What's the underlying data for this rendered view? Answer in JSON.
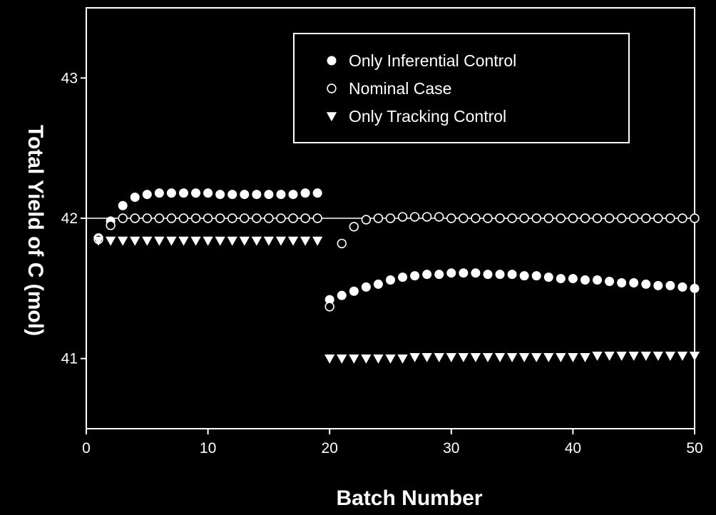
{
  "chart_data": {
    "type": "scatter",
    "title": "",
    "xlabel": "Batch Number",
    "ylabel": "Total Yield of C (mol)",
    "xlim": [
      0,
      50
    ],
    "ylim": [
      40.5,
      43.5
    ],
    "xticks": [
      0,
      10,
      20,
      30,
      40,
      50
    ],
    "yticks": [
      41,
      42,
      43
    ],
    "reference_line": 42,
    "legend_position": "top-right",
    "series": [
      {
        "name": "Only Inferential Control",
        "marker": "filled-circle",
        "x": [
          1,
          2,
          3,
          4,
          5,
          6,
          7,
          8,
          9,
          10,
          11,
          12,
          13,
          14,
          15,
          16,
          17,
          18,
          19,
          20,
          21,
          22,
          23,
          24,
          25,
          26,
          27,
          28,
          29,
          30,
          31,
          32,
          33,
          34,
          35,
          36,
          37,
          38,
          39,
          40,
          41,
          42,
          43,
          44,
          45,
          46,
          47,
          48,
          49,
          50
        ],
        "y": [
          41.86,
          41.98,
          42.09,
          42.15,
          42.17,
          42.18,
          42.18,
          42.18,
          42.18,
          42.18,
          42.17,
          42.17,
          42.17,
          42.17,
          42.17,
          42.17,
          42.17,
          42.18,
          42.18,
          41.42,
          41.45,
          41.48,
          41.51,
          41.53,
          41.56,
          41.58,
          41.59,
          41.6,
          41.6,
          41.61,
          41.61,
          41.61,
          41.6,
          41.6,
          41.6,
          41.59,
          41.59,
          41.58,
          41.57,
          41.57,
          41.56,
          41.56,
          41.55,
          41.54,
          41.54,
          41.53,
          41.52,
          41.52,
          41.51,
          41.5
        ]
      },
      {
        "name": "Nominal Case",
        "marker": "open-circle",
        "x": [
          1,
          2,
          3,
          4,
          5,
          6,
          7,
          8,
          9,
          10,
          11,
          12,
          13,
          14,
          15,
          16,
          17,
          18,
          19,
          20,
          21,
          22,
          23,
          24,
          25,
          26,
          27,
          28,
          29,
          30,
          31,
          32,
          33,
          34,
          35,
          36,
          37,
          38,
          39,
          40,
          41,
          42,
          43,
          44,
          45,
          46,
          47,
          48,
          49,
          50
        ],
        "y": [
          41.85,
          41.95,
          42.0,
          42.0,
          42.0,
          42.0,
          42.0,
          42.0,
          42.0,
          42.0,
          42.0,
          42.0,
          42.0,
          42.0,
          42.0,
          42.0,
          42.0,
          42.0,
          42.0,
          41.37,
          41.82,
          41.94,
          41.99,
          42.0,
          42.0,
          42.01,
          42.01,
          42.01,
          42.01,
          42.0,
          42.0,
          42.0,
          42.0,
          42.0,
          42.0,
          42.0,
          42.0,
          42.0,
          42.0,
          42.0,
          42.0,
          42.0,
          42.0,
          42.0,
          42.0,
          42.0,
          42.0,
          42.0,
          42.0,
          42.0
        ]
      },
      {
        "name": "Only Tracking Control",
        "marker": "filled-triangle-down",
        "x": [
          1,
          2,
          3,
          4,
          5,
          6,
          7,
          8,
          9,
          10,
          11,
          12,
          13,
          14,
          15,
          16,
          17,
          18,
          19,
          20,
          21,
          22,
          23,
          24,
          25,
          26,
          27,
          28,
          29,
          30,
          31,
          32,
          33,
          34,
          35,
          36,
          37,
          38,
          39,
          40,
          41,
          42,
          43,
          44,
          45,
          46,
          47,
          48,
          49,
          50
        ],
        "y": [
          41.84,
          41.84,
          41.84,
          41.84,
          41.84,
          41.84,
          41.84,
          41.84,
          41.84,
          41.84,
          41.84,
          41.84,
          41.84,
          41.84,
          41.84,
          41.84,
          41.84,
          41.84,
          41.84,
          41.0,
          41.0,
          41.0,
          41.0,
          41.0,
          41.0,
          41.0,
          41.01,
          41.01,
          41.01,
          41.01,
          41.01,
          41.01,
          41.01,
          41.01,
          41.01,
          41.01,
          41.01,
          41.01,
          41.01,
          41.01,
          41.01,
          41.02,
          41.02,
          41.02,
          41.02,
          41.02,
          41.02,
          41.02,
          41.02,
          41.02
        ]
      }
    ]
  }
}
